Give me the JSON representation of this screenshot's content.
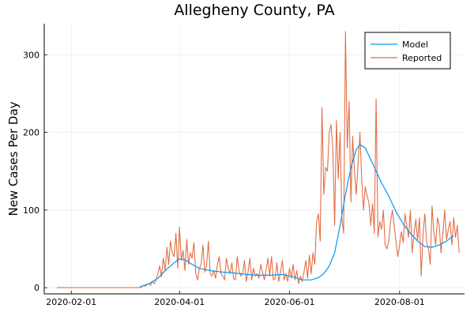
{
  "chart_data": {
    "type": "line",
    "title": "Allegheny County, PA",
    "xlabel": "",
    "ylabel": "New Cases Per Day",
    "x_start": "2020-01-24",
    "x_end": "2020-08-31",
    "xlim": [
      "2020-01-17",
      "2020-09-06"
    ],
    "ylim": [
      -8,
      340
    ],
    "xticks": [
      "2020-02-01",
      "2020-04-01",
      "2020-06-01",
      "2020-08-01"
    ],
    "yticks": [
      0,
      100,
      200,
      300
    ],
    "grid": true,
    "legend_position": "top-right",
    "series": [
      {
        "name": "Model",
        "color": "#009AFA",
        "x": [
          "2020-03-10",
          "2020-03-15",
          "2020-03-20",
          "2020-03-25",
          "2020-03-30",
          "2020-04-01",
          "2020-04-04",
          "2020-04-08",
          "2020-04-12",
          "2020-04-18",
          "2020-04-25",
          "2020-05-01",
          "2020-05-08",
          "2020-05-15",
          "2020-05-22",
          "2020-05-28",
          "2020-06-03",
          "2020-06-08",
          "2020-06-13",
          "2020-06-17",
          "2020-06-20",
          "2020-06-23",
          "2020-06-26",
          "2020-06-29",
          "2020-07-02",
          "2020-07-05",
          "2020-07-08",
          "2020-07-10",
          "2020-07-13",
          "2020-07-16",
          "2020-07-19",
          "2020-07-22",
          "2020-07-26",
          "2020-07-30",
          "2020-08-03",
          "2020-08-07",
          "2020-08-11",
          "2020-08-15",
          "2020-08-19",
          "2020-08-23",
          "2020-08-27",
          "2020-08-31"
        ],
        "y": [
          1,
          5,
          12,
          24,
          34,
          37,
          36,
          30,
          25,
          22,
          20,
          19,
          17,
          16,
          16,
          17,
          14,
          10,
          10,
          13,
          18,
          28,
          45,
          80,
          120,
          155,
          178,
          184,
          180,
          165,
          150,
          135,
          118,
          98,
          82,
          70,
          60,
          53,
          52,
          55,
          60,
          67
        ]
      },
      {
        "name": "Reported",
        "color": "#E26F46",
        "x_start": "2020-01-24",
        "y": [
          0,
          0,
          0,
          0,
          0,
          0,
          0,
          0,
          0,
          0,
          0,
          0,
          0,
          0,
          0,
          0,
          0,
          0,
          0,
          0,
          0,
          0,
          0,
          0,
          0,
          0,
          0,
          0,
          0,
          0,
          0,
          0,
          0,
          0,
          0,
          0,
          0,
          0,
          0,
          0,
          0,
          0,
          0,
          0,
          0,
          0,
          0,
          1,
          3,
          2,
          4,
          5,
          3,
          8,
          5,
          10,
          18,
          28,
          14,
          38,
          22,
          52,
          30,
          60,
          45,
          40,
          70,
          25,
          78,
          35,
          48,
          22,
          62,
          30,
          45,
          38,
          58,
          18,
          10,
          25,
          30,
          55,
          20,
          28,
          60,
          18,
          15,
          22,
          12,
          30,
          40,
          18,
          15,
          10,
          38,
          25,
          18,
          32,
          12,
          10,
          40,
          22,
          15,
          18,
          35,
          8,
          20,
          38,
          10,
          25,
          15,
          18,
          12,
          30,
          20,
          10,
          22,
          38,
          15,
          40,
          10,
          12,
          32,
          8,
          20,
          35,
          10,
          18,
          8,
          25,
          12,
          30,
          10,
          22,
          5,
          15,
          8,
          20,
          35,
          12,
          42,
          18,
          45,
          30,
          85,
          95,
          60,
          232,
          120,
          155,
          150,
          200,
          210,
          180,
          80,
          215,
          140,
          200,
          90,
          70,
          330,
          180,
          240,
          110,
          195,
          150,
          120,
          160,
          200,
          140,
          100,
          130,
          118,
          110,
          80,
          108,
          70,
          243,
          65,
          85,
          75,
          100,
          55,
          50,
          60,
          85,
          100,
          80,
          60,
          40,
          55,
          72,
          58,
          95,
          80,
          65,
          100,
          45,
          70,
          88,
          60,
          90,
          15,
          70,
          95,
          58,
          50,
          30,
          105,
          72,
          55,
          90,
          80,
          45,
          70,
          100,
          62,
          75,
          85,
          55,
          90,
          65,
          80,
          45
        ]
      }
    ]
  }
}
